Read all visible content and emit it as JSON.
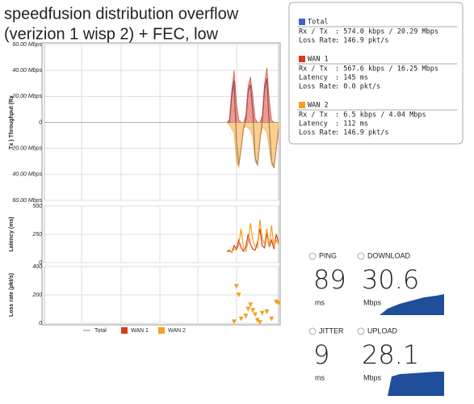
{
  "title_lines": [
    "speedfusion distribution overflow",
    "(verizion 1 wisp 2) + FEC, low"
  ],
  "chart_data": [
    {
      "type": "area",
      "y_label": "Tx ) Throughput (Rx",
      "x": [
        78,
        79,
        80,
        81,
        82,
        83,
        84,
        85,
        86,
        87,
        88,
        89,
        90,
        91,
        92,
        93,
        94,
        95,
        96,
        97,
        98,
        99,
        100
      ],
      "xlim": [
        0,
        100
      ],
      "ylim": [
        -60,
        60
      ],
      "yticks": [
        {
          "value": -60,
          "label": "60.00 Mbps"
        },
        {
          "value": -40,
          "label": "40.00 Mbps"
        },
        {
          "value": -20,
          "label": "20.00 Mbps"
        },
        0,
        {
          "value": 20,
          "label": "20.00 Mbps"
        },
        {
          "value": 40,
          "label": "40.00 Mbps"
        },
        {
          "value": 60,
          "label": "60.00 Mbps"
        }
      ],
      "grid": true,
      "series": [
        {
          "name": "Total",
          "color": "#4b5aa8",
          "area": false,
          "values": [
            0,
            0,
            20,
            32,
            -15,
            -33,
            -20,
            -5,
            2,
            24,
            29,
            8,
            -27,
            -33,
            -15,
            1,
            25,
            34,
            -2,
            -30,
            -35,
            -20,
            -5
          ]
        },
        {
          "name": "WAN 1",
          "color": "#d93a1f",
          "area": true,
          "values": [
            0,
            2,
            25,
            40,
            15,
            2,
            0,
            0,
            5,
            28,
            35,
            20,
            3,
            0,
            0,
            5,
            30,
            42,
            18,
            2,
            0,
            0,
            0
          ]
        },
        {
          "name": "WAN 2",
          "color": "#f5a020",
          "area": true,
          "values": [
            0,
            -2,
            -5,
            -8,
            -30,
            -35,
            -20,
            -5,
            -3,
            -4,
            -6,
            -12,
            -30,
            -33,
            -15,
            -4,
            -5,
            -8,
            -20,
            -32,
            -35,
            -20,
            -5
          ]
        }
      ]
    },
    {
      "type": "line",
      "y_label": "Latency (ms)",
      "x": [
        78,
        79,
        80,
        81,
        82,
        83,
        84,
        85,
        86,
        87,
        88,
        89,
        90,
        91,
        92,
        93,
        94,
        95,
        96,
        97,
        98,
        99,
        100
      ],
      "xlim": [
        0,
        100
      ],
      "ylim": [
        0,
        500
      ],
      "yticks": [
        0,
        250,
        500
      ],
      "grid": true,
      "series": [
        {
          "name": "WAN 1",
          "color": "#d93a1f",
          "values": [
            100,
            110,
            90,
            150,
            120,
            200,
            130,
            100,
            140,
            250,
            160,
            120,
            110,
            180,
            300,
            150,
            130,
            260,
            140,
            200,
            120,
            250,
            180
          ]
        },
        {
          "name": "WAN 2",
          "color": "#f5a020",
          "values": [
            90,
            100,
            95,
            120,
            110,
            150,
            300,
            120,
            100,
            180,
            350,
            200,
            140,
            130,
            380,
            220,
            160,
            300,
            150,
            330,
            140,
            200,
            160
          ]
        }
      ]
    },
    {
      "type": "scatter",
      "y_label": "Loss rate (pkt/s)",
      "x": [
        81,
        82,
        83,
        84,
        86,
        87,
        88,
        89,
        90,
        91,
        92,
        93,
        95,
        97,
        99,
        100
      ],
      "xlim": [
        0,
        100
      ],
      "ylim": [
        0,
        400
      ],
      "yticks": [
        0,
        200,
        400
      ],
      "grid": true,
      "series": [
        {
          "name": "WAN 2",
          "color": "#f5a020",
          "values": [
            10,
            260,
            200,
            30,
            50,
            100,
            130,
            90,
            60,
            20,
            5,
            70,
            80,
            30,
            150,
            140
          ]
        }
      ]
    }
  ],
  "stats": [
    {
      "name": "Total",
      "color": "#3a66c8",
      "rows": [
        [
          "Rx / Tx",
          ": 574.0 kbps / 20.29 Mbps"
        ],
        [
          "Loss Rate",
          ": 146.9 pkt/s"
        ]
      ]
    },
    {
      "name": "WAN 1",
      "color": "#d93a1f",
      "rows": [
        [
          "Rx / Tx",
          ": 567.6 kbps / 16.25 Mbps"
        ],
        [
          "Latency",
          ": 145 ms"
        ],
        [
          "Loss Rate",
          ": 0.0 pkt/s"
        ]
      ]
    },
    {
      "name": "WAN 2",
      "color": "#f5a020",
      "rows": [
        [
          "Rx / Tx",
          ": 6.5 kbps / 4.04 Mbps"
        ],
        [
          "Latency",
          ": 112 ms"
        ],
        [
          "Loss Rate",
          ": 146.9 pkt/s"
        ]
      ]
    }
  ],
  "speedtest": [
    {
      "label": "PING",
      "value": 89,
      "unit": "ms"
    },
    {
      "label": "DOWNLOAD",
      "value": 30.6,
      "unit": "Mbps"
    },
    {
      "label": "JITTER",
      "value": 9,
      "unit": "ms"
    },
    {
      "label": "UPLOAD",
      "value": 28.1,
      "unit": "Mbps"
    }
  ]
}
